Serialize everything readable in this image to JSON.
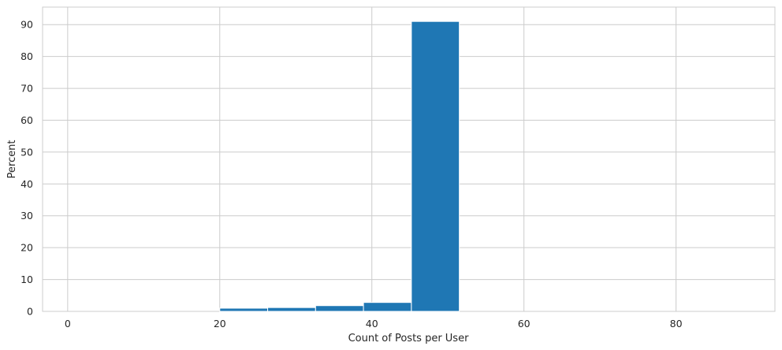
{
  "chart_data": {
    "type": "bar",
    "histogram": true,
    "xlabel": "Count of Posts per User",
    "ylabel": "Percent",
    "xlim": [
      -3.3,
      93
    ],
    "ylim": [
      0,
      95.5
    ],
    "xticks": [
      0,
      20,
      40,
      60,
      80
    ],
    "yticks": [
      0,
      10,
      20,
      30,
      40,
      50,
      60,
      70,
      80,
      90
    ],
    "grid": true,
    "bar_color": "#1f77b4",
    "bins": [
      {
        "x0": 20.0,
        "x1": 26.3,
        "value": 1.0
      },
      {
        "x0": 26.3,
        "x1": 32.6,
        "value": 1.2
      },
      {
        "x0": 32.6,
        "x1": 38.9,
        "value": 1.8
      },
      {
        "x0": 38.9,
        "x1": 45.2,
        "value": 2.8
      },
      {
        "x0": 45.2,
        "x1": 51.5,
        "value": 91.0
      }
    ]
  }
}
